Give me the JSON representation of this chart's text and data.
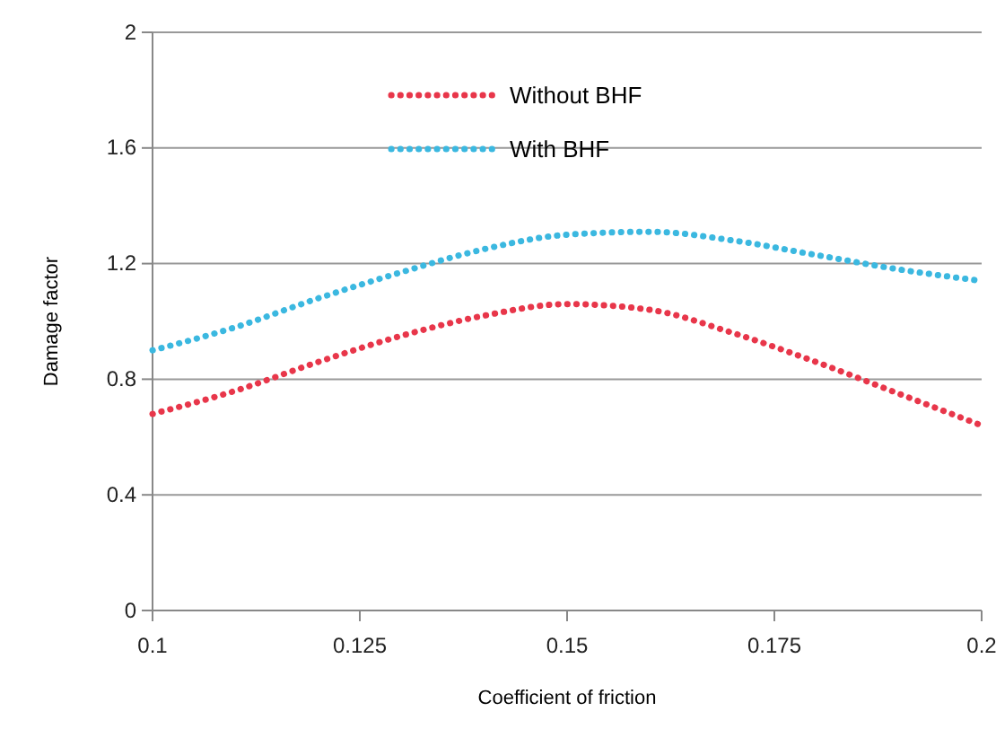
{
  "chart_data": {
    "type": "line",
    "xlabel": "Coefficient of friction",
    "ylabel": "Damage factor",
    "x": [
      0.1,
      0.11,
      0.12,
      0.13,
      0.14,
      0.15,
      0.16,
      0.17,
      0.18,
      0.19,
      0.2
    ],
    "series": [
      {
        "name": "Without BHF",
        "color": "#e8364a",
        "values": [
          0.68,
          0.76,
          0.86,
          0.95,
          1.02,
          1.06,
          1.04,
          0.96,
          0.86,
          0.75,
          0.64
        ]
      },
      {
        "name": "With BHF",
        "color": "#3bb8e0",
        "values": [
          0.9,
          0.98,
          1.08,
          1.17,
          1.25,
          1.3,
          1.31,
          1.28,
          1.23,
          1.18,
          1.14
        ]
      }
    ],
    "xlim": [
      0.1,
      0.2
    ],
    "xticks": [
      0.1,
      0.125,
      0.15,
      0.175,
      0.2
    ],
    "ylim": [
      0,
      2
    ],
    "yticks": [
      0,
      0.4,
      0.8,
      1.2,
      1.6,
      2
    ],
    "grid": "y",
    "legend": "top",
    "line_style": "dotted",
    "marker": "none"
  }
}
